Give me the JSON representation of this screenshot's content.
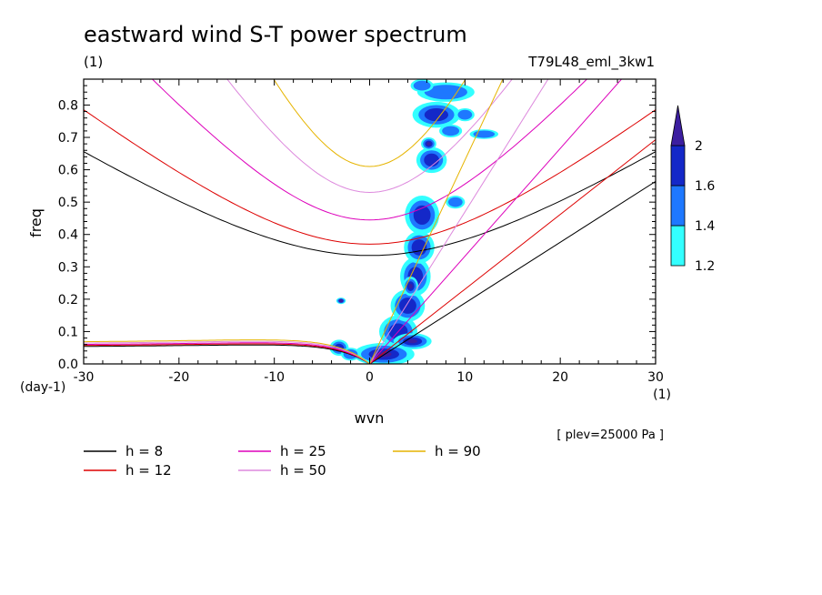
{
  "chart_data": {
    "type": "line",
    "title": "eastward wind S-T power spectrum",
    "units_note": "(1)",
    "run_label": "T79L48_eml_3kw1",
    "xlabel": "wvn",
    "x_unit": "(1)",
    "ylabel": "freq",
    "y_unit": "(day-1)",
    "xlim": [
      -30,
      30
    ],
    "ylim": [
      0,
      0.88
    ],
    "x_ticks": [
      -30,
      -20,
      -10,
      0,
      10,
      20,
      30
    ],
    "x_tick_labels": [
      "-30",
      "-20",
      "-10",
      "0",
      "10",
      "20",
      "30"
    ],
    "y_ticks": [
      0.0,
      0.1,
      0.2,
      0.3,
      0.4,
      0.5,
      0.6,
      0.7,
      0.8
    ],
    "y_tick_labels": [
      "0.0",
      "0.1",
      "0.2",
      "0.3",
      "0.4",
      "0.5",
      "0.6",
      "0.7",
      "0.8"
    ],
    "level_note": "[ plev=25000 Pa ]",
    "colorbar": {
      "levels": [
        "1.2",
        "1.4",
        "1.6",
        "2"
      ],
      "colors": [
        "#33ffff",
        "#1e78ff",
        "#1428c8",
        "#3c1ea0"
      ]
    },
    "legend": [
      {
        "label": "h =  8",
        "color": "#000000"
      },
      {
        "label": "h = 12",
        "color": "#dd0000"
      },
      {
        "label": "h = 25",
        "color": "#dd00bb"
      },
      {
        "label": "h = 50",
        "color": "#dd88dd"
      },
      {
        "label": "h = 90",
        "color": "#e6b400"
      }
    ],
    "series": [
      {
        "name": "h =  8",
        "color": "#000000",
        "minimum": 0.335,
        "kelvin_slope": 0.0188,
        "mrg_limit": 0.052
      },
      {
        "name": "h = 12",
        "color": "#dd0000",
        "minimum": 0.37,
        "kelvin_slope": 0.0231,
        "mrg_limit": 0.055
      },
      {
        "name": "h = 25",
        "color": "#dd00bb",
        "minimum": 0.445,
        "kelvin_slope": 0.0333,
        "mrg_limit": 0.058
      },
      {
        "name": "h = 50",
        "color": "#dd88dd",
        "minimum": 0.53,
        "kelvin_slope": 0.047,
        "mrg_limit": 0.062
      },
      {
        "name": "h = 90",
        "color": "#e6b400",
        "minimum": 0.61,
        "kelvin_slope": 0.063,
        "mrg_limit": 0.066
      }
    ],
    "power_blobs": [
      {
        "x": 1.5,
        "y": 0.03,
        "rx": 3.2,
        "ry": 0.035,
        "level": 3
      },
      {
        "x": 3.0,
        "y": 0.1,
        "rx": 2.0,
        "ry": 0.05,
        "level": 2
      },
      {
        "x": 4.0,
        "y": 0.18,
        "rx": 1.8,
        "ry": 0.05,
        "level": 2
      },
      {
        "x": 4.8,
        "y": 0.27,
        "rx": 1.6,
        "ry": 0.06,
        "level": 2
      },
      {
        "x": 5.2,
        "y": 0.36,
        "rx": 1.6,
        "ry": 0.05,
        "level": 2
      },
      {
        "x": 5.5,
        "y": 0.46,
        "rx": 1.8,
        "ry": 0.06,
        "level": 2
      },
      {
        "x": 6.5,
        "y": 0.63,
        "rx": 1.6,
        "ry": 0.04,
        "level": 2
      },
      {
        "x": 7.0,
        "y": 0.77,
        "rx": 2.5,
        "ry": 0.04,
        "level": 2
      },
      {
        "x": 8.0,
        "y": 0.84,
        "rx": 3.0,
        "ry": 0.03,
        "level": 1
      },
      {
        "x": 4.5,
        "y": 0.07,
        "rx": 2.0,
        "ry": 0.025,
        "level": 3
      },
      {
        "x": 4.3,
        "y": 0.24,
        "rx": 0.8,
        "ry": 0.03,
        "level": 3
      },
      {
        "x": 6.2,
        "y": 0.68,
        "rx": 0.8,
        "ry": 0.02,
        "level": 3
      },
      {
        "x": -3.2,
        "y": 0.05,
        "rx": 1.0,
        "ry": 0.025,
        "level": 2
      },
      {
        "x": -3.0,
        "y": 0.195,
        "rx": 0.5,
        "ry": 0.01,
        "level": 3
      },
      {
        "x": 8.5,
        "y": 0.72,
        "rx": 1.2,
        "ry": 0.02,
        "level": 1
      },
      {
        "x": 10.0,
        "y": 0.77,
        "rx": 1.0,
        "ry": 0.02,
        "level": 1
      },
      {
        "x": 12.0,
        "y": 0.71,
        "rx": 1.5,
        "ry": 0.015,
        "level": 1
      },
      {
        "x": 9.0,
        "y": 0.5,
        "rx": 1.0,
        "ry": 0.02,
        "level": 1
      },
      {
        "x": 5.5,
        "y": 0.86,
        "rx": 1.2,
        "ry": 0.02,
        "level": 1
      },
      {
        "x": -2.0,
        "y": 0.03,
        "rx": 1.0,
        "ry": 0.02,
        "level": 1
      }
    ]
  }
}
